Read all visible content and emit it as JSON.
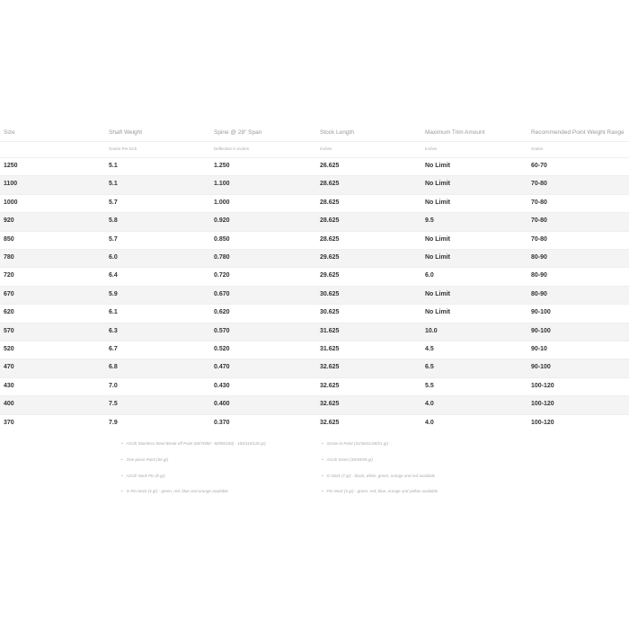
{
  "table": {
    "headers": [
      "Size",
      "Shaft Weight",
      "Spine @ 28\" Span",
      "Stock Length",
      "Maximum Trim Amount",
      "Recommended Point Weight Range"
    ],
    "subheaders": [
      "Grains Per Inch",
      "Deflection in inches",
      "Inches",
      "Inches",
      "Grains"
    ],
    "rows": [
      [
        "1250",
        "5.1",
        "1.250",
        "26.625",
        "No Limit",
        "60-70"
      ],
      [
        "1100",
        "5.1",
        "1.100",
        "28.625",
        "No Limit",
        "70-80"
      ],
      [
        "1000",
        "5.7",
        "1.000",
        "28.625",
        "No Limit",
        "70-80"
      ],
      [
        "920",
        "5.8",
        "0.920",
        "28.625",
        "9.5",
        "70-80"
      ],
      [
        "850",
        "5.7",
        "0.850",
        "28.625",
        "No Limit",
        "70-80"
      ],
      [
        "780",
        "6.0",
        "0.780",
        "29.625",
        "No Limit",
        "80-90"
      ],
      [
        "720",
        "6.4",
        "0.720",
        "29.625",
        "6.0",
        "80-90"
      ],
      [
        "670",
        "5.9",
        "0.670",
        "30.625",
        "No Limit",
        "80-90"
      ],
      [
        "620",
        "6.1",
        "0.620",
        "30.625",
        "No Limit",
        "90-100"
      ],
      [
        "570",
        "6.3",
        "0.570",
        "31.625",
        "10.0",
        "90-100"
      ],
      [
        "520",
        "6.7",
        "0.520",
        "31.625",
        "4.5",
        "90-10"
      ],
      [
        "470",
        "6.8",
        "0.470",
        "32.625",
        "6.5",
        "90-100"
      ],
      [
        "430",
        "7.0",
        "0.430",
        "32.625",
        "5.5",
        "100-120"
      ],
      [
        "400",
        "7.5",
        "0.400",
        "32.625",
        "4.0",
        "100-120"
      ],
      [
        "370",
        "7.9",
        "0.370",
        "32.625",
        "4.0",
        "100-120"
      ]
    ]
  },
  "notes": {
    "left": [
      "A/C/E Stainless Steel Break-off Point (60/70/80 - 80/90/100) - 100/110/120 gr)",
      "One-piece Point (50 gr)",
      "A/C/E Nock Pin (8 gr)",
      "G Pin Nock (4 gr) - green, red, blue and orange available"
    ],
    "right": [
      "Screw-in Point (31/36/41/46/51 gr)",
      "A/C/E Insert (39/49/59 gr)",
      "G Nock (7 gr) - black, white, green, orange and red available",
      "Pin Nock (3 gr) - green, red, blue, orange and yellow available"
    ]
  }
}
